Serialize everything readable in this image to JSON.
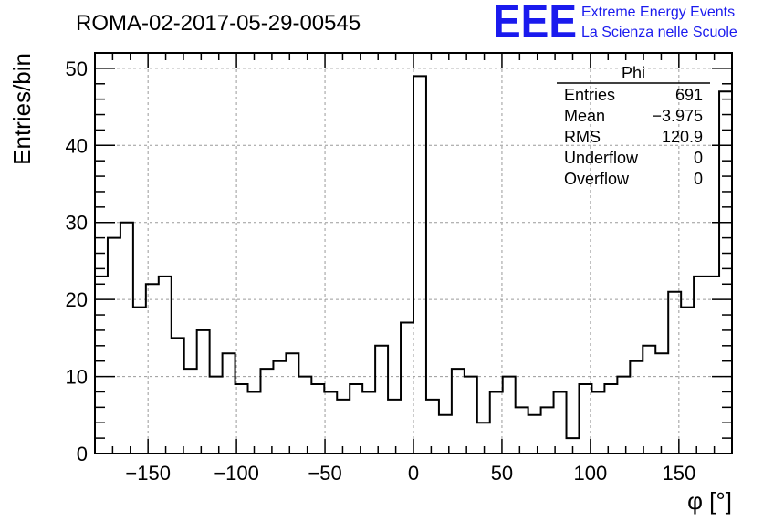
{
  "chart_data": {
    "type": "histogram",
    "title": "ROMA-02-2017-05-29-00545",
    "xlabel": "φ [°]",
    "ylabel": "Entries/bin",
    "xlim": [
      -180,
      180
    ],
    "ylim": [
      0,
      52
    ],
    "bin_width": 7.2,
    "x_ticks": [
      -150,
      -100,
      -50,
      0,
      50,
      100,
      150
    ],
    "y_ticks": [
      0,
      10,
      20,
      30,
      40,
      50
    ],
    "grid": true,
    "values": [
      23,
      28,
      30,
      19,
      22,
      23,
      15,
      11,
      16,
      10,
      13,
      9,
      8,
      11,
      12,
      13,
      10,
      9,
      8,
      7,
      9,
      8,
      14,
      7,
      17,
      49,
      7,
      5,
      11,
      10,
      4,
      8,
      10,
      6,
      5,
      6,
      8,
      2,
      9,
      8,
      9,
      10,
      12,
      14,
      13,
      21,
      19,
      23,
      23,
      47
    ],
    "stats": {
      "name": "Phi",
      "rows": [
        {
          "label": "Entries",
          "value": "691"
        },
        {
          "label": "Mean",
          "value": "−3.975"
        },
        {
          "label": "RMS",
          "value": "120.9"
        },
        {
          "label": "Underflow",
          "value": "0"
        },
        {
          "label": "Overflow",
          "value": "0"
        }
      ]
    }
  },
  "branding": {
    "logo": "EEE",
    "line1": "Extreme Energy Events",
    "line2": "La Scienza nelle Scuole",
    "color": "#1a1aee"
  }
}
